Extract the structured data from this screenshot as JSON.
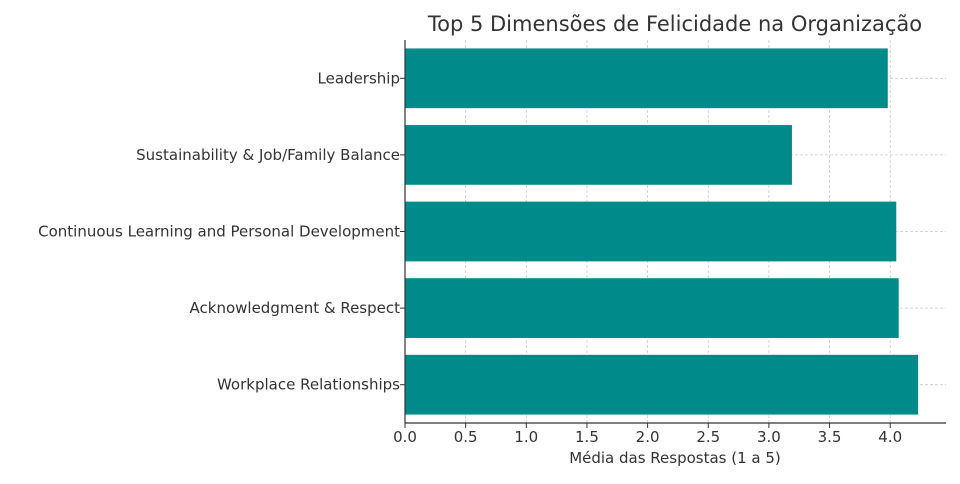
{
  "chart_data": {
    "type": "bar",
    "orientation": "horizontal",
    "title": "Top 5 Dimensões de Felicidade na Organização",
    "xlabel": "Média das Respostas (1 a 5)",
    "ylabel": "",
    "categories": [
      "Leadership",
      "Sustainability & Job/Family Balance",
      "Continuous Learning and Personal Development",
      "Acknowledgment & Respect",
      "Workplace Relationships"
    ],
    "values": [
      3.98,
      3.19,
      4.05,
      4.07,
      4.23
    ],
    "xlim": [
      0,
      4.46
    ],
    "xticks": [
      "0.0",
      "0.5",
      "1.0",
      "1.5",
      "2.0",
      "2.5",
      "3.0",
      "3.5",
      "4.0"
    ],
    "bar_color": "#008b8b",
    "grid": true
  }
}
